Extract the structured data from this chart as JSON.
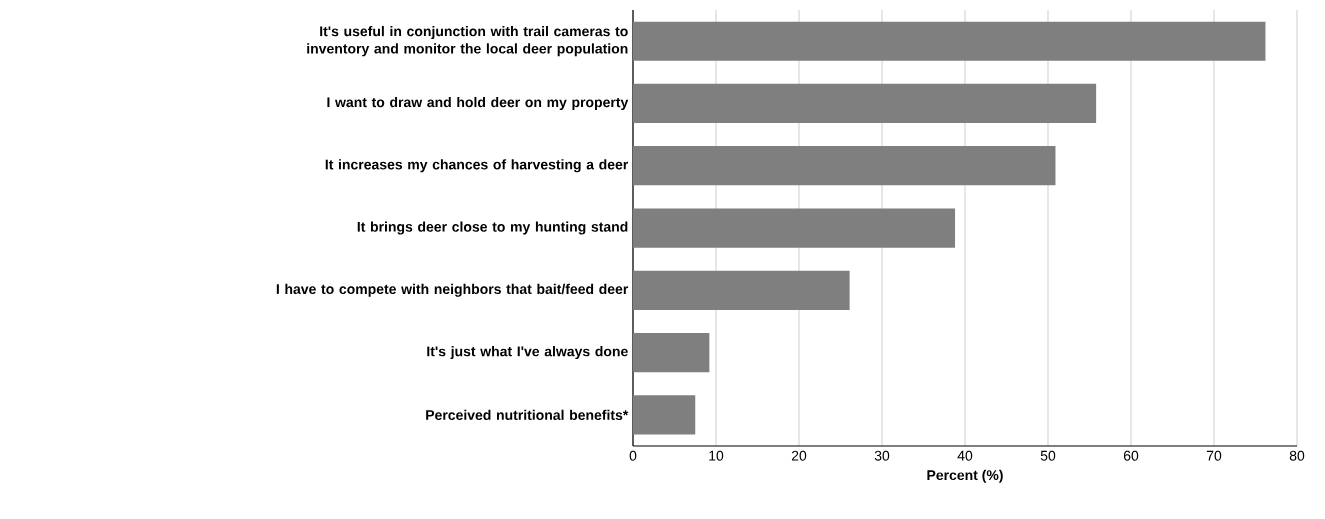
{
  "chart_data": {
    "type": "bar",
    "orientation": "horizontal",
    "xlabel": "Percent (%)",
    "categories": [
      "It's useful in conjunction with trail cameras to inventory and monitor the local deer population",
      "I want to draw and hold deer on my property",
      "It increases my chances of harvesting a deer",
      "It brings deer close to my hunting stand",
      "I have to compete with neighbors that bait/feed deer",
      "It's just what I've always done",
      "Perceived nutritional benefits*"
    ],
    "values": [
      76.2,
      55.8,
      50.9,
      38.8,
      26.1,
      9.2,
      7.5
    ],
    "color": "#7f7f7f",
    "xlim": [
      0,
      80
    ],
    "xticks": [
      0,
      10,
      20,
      30,
      40,
      50,
      60,
      70,
      80
    ],
    "grid": "x"
  }
}
